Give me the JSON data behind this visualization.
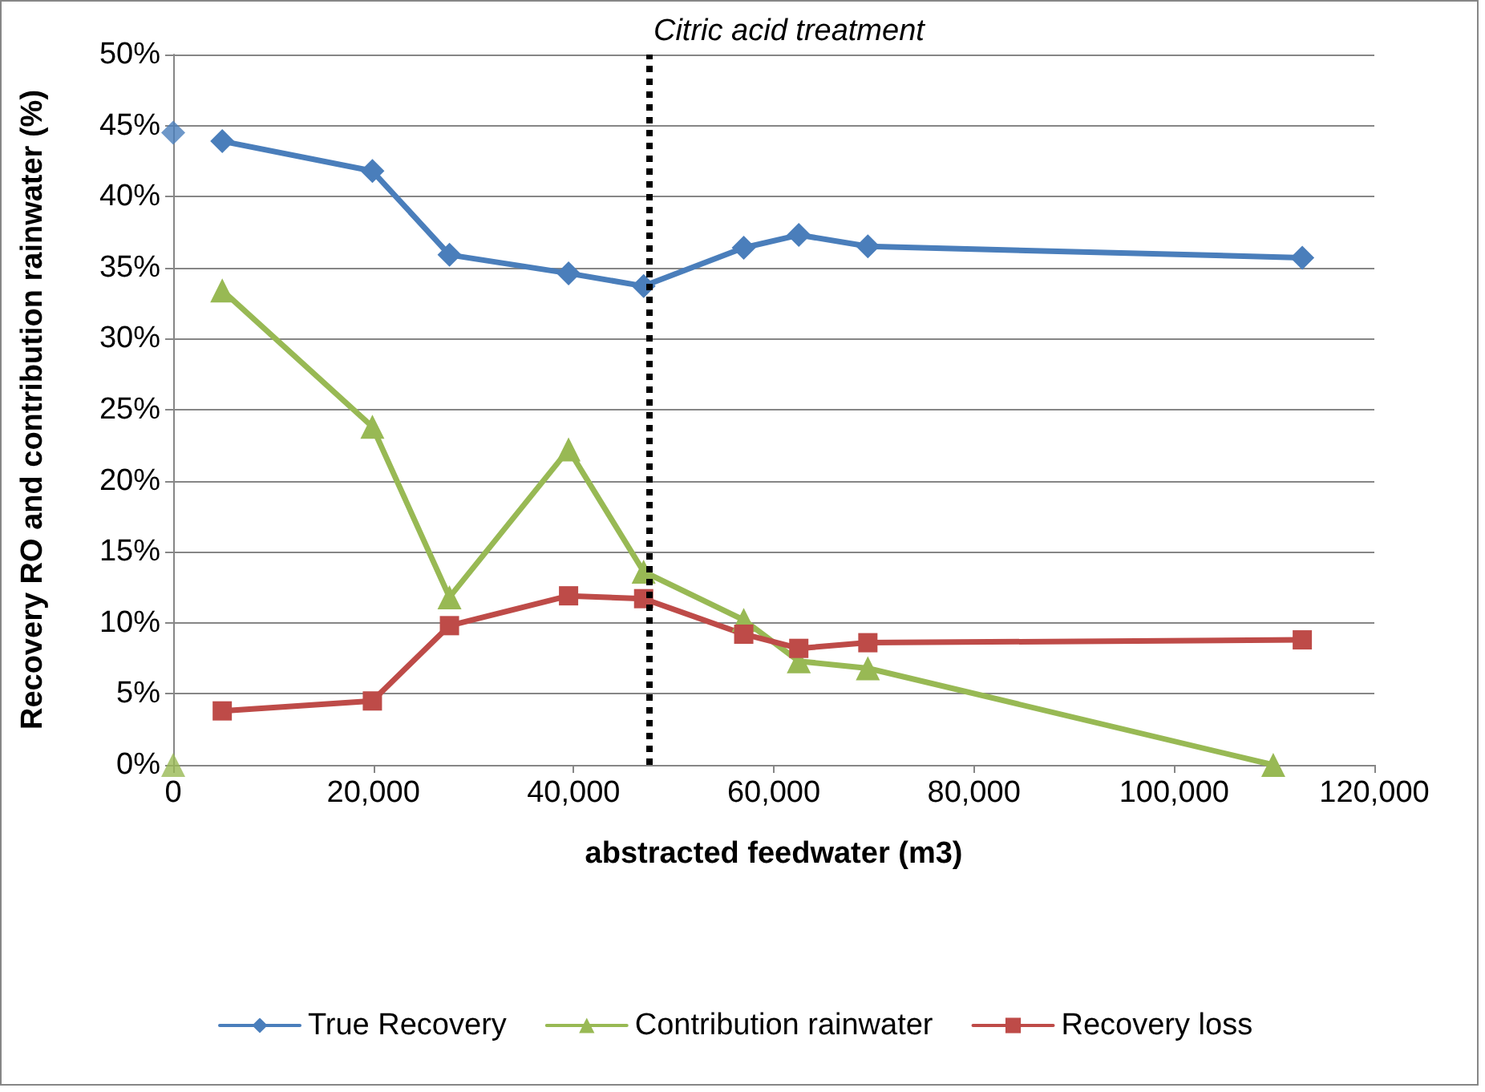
{
  "chart_data": {
    "type": "line",
    "xlabel": "abstracted feedwater (m3)",
    "ylabel": "Recovery RO and contribution rainwater (%)",
    "xlim": [
      0,
      120000
    ],
    "xticks": [
      {
        "value": 0,
        "label": "0"
      },
      {
        "value": 20000,
        "label": "20,000"
      },
      {
        "value": 40000,
        "label": "40,000"
      },
      {
        "value": 60000,
        "label": "60,000"
      },
      {
        "value": 80000,
        "label": "80,000"
      },
      {
        "value": 100000,
        "label": "100,000"
      },
      {
        "value": 120000,
        "label": "120,000"
      }
    ],
    "ylim": [
      0,
      50
    ],
    "yticks": [
      {
        "value": 0,
        "label": "0%"
      },
      {
        "value": 5,
        "label": "5%"
      },
      {
        "value": 10,
        "label": "10%"
      },
      {
        "value": 15,
        "label": "15%"
      },
      {
        "value": 20,
        "label": "20%"
      },
      {
        "value": 25,
        "label": "25%"
      },
      {
        "value": 30,
        "label": "30%"
      },
      {
        "value": 35,
        "label": "35%"
      },
      {
        "value": 40,
        "label": "40%"
      },
      {
        "value": 45,
        "label": "45%"
      },
      {
        "value": 50,
        "label": "50%"
      }
    ],
    "grid": "y",
    "legend": "bottom",
    "series": [
      {
        "name": "True Recovery",
        "color": "#4a7ebb",
        "marker": "diamond",
        "x": [
          4900,
          19900,
          27600,
          39500,
          47000,
          57000,
          62500,
          69400,
          112800
        ],
        "values": [
          43.9,
          41.8,
          35.9,
          34.6,
          33.7,
          36.4,
          37.3,
          36.5,
          35.7
        ]
      },
      {
        "name": "Contribution rainwater",
        "color": "#98b954",
        "marker": "triangle",
        "x": [
          4900,
          19900,
          27600,
          39500,
          47000,
          57000,
          62500,
          69400,
          109900
        ],
        "values": [
          33.4,
          23.8,
          11.8,
          22.2,
          13.6,
          10.2,
          7.3,
          6.8,
          0
        ]
      },
      {
        "name": "Recovery loss",
        "color": "#be4b48",
        "marker": "square",
        "x": [
          4900,
          19900,
          27600,
          39500,
          47000,
          57000,
          62500,
          69400,
          112800
        ],
        "values": [
          3.8,
          4.5,
          9.8,
          11.9,
          11.7,
          9.2,
          8.2,
          8.6,
          8.8
        ]
      },
      {
        "type": "scatter",
        "color": "#4a7ebb",
        "marker": "diamond",
        "x": [
          0
        ],
        "values": [
          44.5
        ]
      },
      {
        "type": "scatter",
        "color": "#98b954",
        "marker": "triangle",
        "x": [
          0
        ],
        "values": [
          0
        ]
      }
    ],
    "ref_lines": [
      {
        "axis": "x",
        "value": 47500,
        "label": "Citric acid treatment",
        "color": "#000000",
        "line_style": "dotted"
      }
    ]
  }
}
